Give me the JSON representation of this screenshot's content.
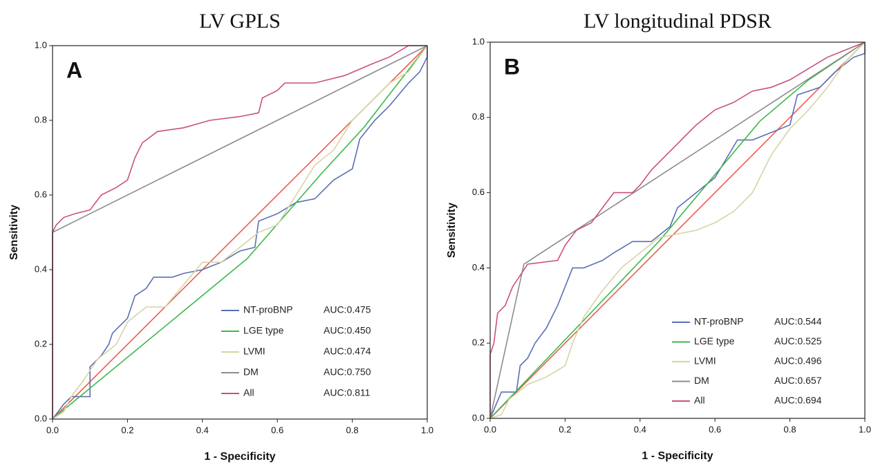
{
  "chart_data": [
    {
      "type": "line",
      "title": "LV GPLS",
      "panel_label": "A",
      "x_label": "1 - Specificity",
      "y_label": "Sensitivity",
      "xlim": [
        0,
        1
      ],
      "ylim": [
        0,
        1
      ],
      "xticks": [
        {
          "value": 0,
          "label": "0.0"
        },
        0.2,
        0.4,
        0.6,
        0.8,
        {
          "value": 1,
          "label": "1.0"
        }
      ],
      "yticks": [
        {
          "value": 0,
          "label": "0.0"
        },
        0.2,
        0.4,
        0.6,
        0.8,
        {
          "value": 1,
          "label": "1.0"
        }
      ],
      "series": [
        {
          "name": "NT-proBNP",
          "auc_label": "AUC:0.475",
          "color": "#5a6fb5",
          "x": [
            0,
            0.03,
            0.05,
            0.1,
            0.1,
            0.13,
            0.15,
            0.16,
            0.2,
            0.22,
            0.25,
            0.27,
            0.32,
            0.35,
            0.4,
            0.45,
            0.5,
            0.54,
            0.55,
            0.6,
            0.65,
            0.7,
            0.75,
            0.8,
            0.82,
            0.86,
            0.9,
            0.95,
            0.98,
            1,
            1
          ],
          "values": [
            0,
            0.04,
            0.06,
            0.06,
            0.14,
            0.17,
            0.2,
            0.23,
            0.27,
            0.33,
            0.35,
            0.38,
            0.38,
            0.39,
            0.4,
            0.42,
            0.45,
            0.46,
            0.53,
            0.55,
            0.58,
            0.59,
            0.64,
            0.67,
            0.75,
            0.8,
            0.84,
            0.9,
            0.93,
            0.97,
            1
          ]
        },
        {
          "name": "LGE type",
          "auc_label": "AUC:0.450",
          "color": "#3cb84a",
          "x": [
            0,
            0.52,
            0.72,
            0.83,
            1
          ],
          "values": [
            0,
            0.43,
            0.66,
            0.78,
            1
          ]
        },
        {
          "name": "LVMI",
          "auc_label": "AUC:0.474",
          "color": "#d6d4a4",
          "x": [
            0,
            0.03,
            0.05,
            0.08,
            0.12,
            0.17,
            0.2,
            0.25,
            0.3,
            0.35,
            0.4,
            0.45,
            0.5,
            0.55,
            0.6,
            0.65,
            0.7,
            0.75,
            0.8,
            0.85,
            0.9,
            0.95,
            1
          ],
          "values": [
            0,
            0.02,
            0.06,
            0.1,
            0.16,
            0.2,
            0.26,
            0.3,
            0.3,
            0.36,
            0.42,
            0.42,
            0.46,
            0.5,
            0.52,
            0.6,
            0.68,
            0.72,
            0.8,
            0.85,
            0.9,
            0.93,
            1
          ]
        },
        {
          "name": "DM",
          "auc_label": "AUC:0.750",
          "color": "#8c8c8c",
          "x": [
            0,
            0,
            1
          ],
          "values": [
            0,
            0.5,
            1
          ]
        },
        {
          "name": "All",
          "auc_label": "AUC:0.811",
          "color": "#c8507e",
          "x": [
            0,
            0,
            0.01,
            0.03,
            0.06,
            0.1,
            0.13,
            0.17,
            0.2,
            0.22,
            0.24,
            0.28,
            0.35,
            0.42,
            0.5,
            0.55,
            0.56,
            0.6,
            0.62,
            0.7,
            0.78,
            0.85,
            0.9,
            0.95,
            1
          ],
          "values": [
            0,
            0.5,
            0.52,
            0.54,
            0.55,
            0.56,
            0.6,
            0.62,
            0.64,
            0.7,
            0.74,
            0.77,
            0.78,
            0.8,
            0.81,
            0.82,
            0.86,
            0.88,
            0.9,
            0.9,
            0.92,
            0.95,
            0.97,
            1,
            1
          ]
        }
      ]
    },
    {
      "type": "line",
      "title": "LV longitudinal PDSR",
      "panel_label": "B",
      "x_label": "1 - Specificity",
      "y_label": "Sensitivity",
      "xlim": [
        0,
        1
      ],
      "ylim": [
        0,
        1
      ],
      "xticks": [
        {
          "value": 0,
          "label": "0.0"
        },
        0.2,
        0.4,
        0.6,
        0.8,
        {
          "value": 1,
          "label": "1.0"
        }
      ],
      "yticks": [
        {
          "value": 0,
          "label": "0.0"
        },
        0.2,
        0.4,
        0.6,
        0.8,
        {
          "value": 1,
          "label": "1.0"
        }
      ],
      "series": [
        {
          "name": "NT-proBNP",
          "auc_label": "AUC:0.544",
          "color": "#5a6fb5",
          "x": [
            0,
            0.03,
            0.07,
            0.08,
            0.1,
            0.12,
            0.15,
            0.18,
            0.2,
            0.22,
            0.25,
            0.3,
            0.33,
            0.38,
            0.43,
            0.48,
            0.5,
            0.55,
            0.6,
            0.63,
            0.66,
            0.7,
            0.75,
            0.8,
            0.82,
            0.88,
            0.92,
            0.97,
            1,
            1
          ],
          "values": [
            0,
            0.07,
            0.07,
            0.14,
            0.16,
            0.2,
            0.24,
            0.3,
            0.35,
            0.4,
            0.4,
            0.42,
            0.44,
            0.47,
            0.47,
            0.51,
            0.56,
            0.6,
            0.64,
            0.69,
            0.74,
            0.74,
            0.76,
            0.78,
            0.86,
            0.88,
            0.92,
            0.96,
            0.97,
            1
          ]
        },
        {
          "name": "LGE type",
          "auc_label": "AUC:0.525",
          "color": "#3cb84a",
          "x": [
            0,
            0.45,
            0.72,
            0.85,
            1
          ],
          "values": [
            0,
            0.47,
            0.79,
            0.9,
            1
          ]
        },
        {
          "name": "LVMI",
          "auc_label": "AUC:0.496",
          "color": "#d6d4a4",
          "x": [
            0,
            0.03,
            0.05,
            0.1,
            0.15,
            0.2,
            0.22,
            0.25,
            0.3,
            0.35,
            0.4,
            0.45,
            0.5,
            0.55,
            0.6,
            0.65,
            0.7,
            0.75,
            0.8,
            0.85,
            0.9,
            0.95,
            1
          ],
          "values": [
            0,
            0.01,
            0.05,
            0.09,
            0.11,
            0.14,
            0.2,
            0.27,
            0.34,
            0.4,
            0.44,
            0.48,
            0.49,
            0.5,
            0.52,
            0.55,
            0.6,
            0.7,
            0.77,
            0.82,
            0.88,
            0.95,
            1
          ]
        },
        {
          "name": "DM",
          "auc_label": "AUC:0.657",
          "color": "#8c8c8c",
          "x": [
            0,
            0.09,
            1
          ],
          "values": [
            0,
            0.41,
            1
          ]
        },
        {
          "name": "All",
          "auc_label": "AUC:0.694",
          "color": "#c8507e",
          "x": [
            0,
            0,
            0.01,
            0.02,
            0.04,
            0.06,
            0.08,
            0.1,
            0.18,
            0.2,
            0.23,
            0.27,
            0.3,
            0.33,
            0.38,
            0.4,
            0.43,
            0.47,
            0.5,
            0.52,
            0.55,
            0.6,
            0.65,
            0.7,
            0.75,
            0.8,
            0.85,
            0.9,
            0.95,
            1
          ],
          "values": [
            0,
            0.17,
            0.2,
            0.28,
            0.3,
            0.35,
            0.38,
            0.41,
            0.42,
            0.46,
            0.5,
            0.52,
            0.56,
            0.6,
            0.6,
            0.62,
            0.66,
            0.7,
            0.73,
            0.75,
            0.78,
            0.82,
            0.84,
            0.87,
            0.88,
            0.9,
            0.93,
            0.96,
            0.98,
            1
          ]
        }
      ]
    }
  ]
}
